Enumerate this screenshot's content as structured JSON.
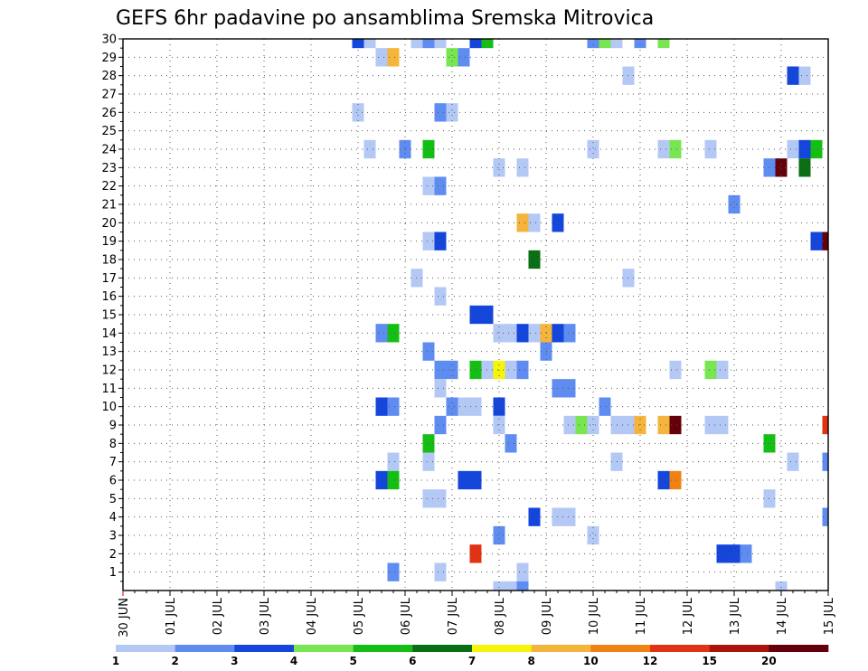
{
  "chart_data": {
    "type": "heatmap",
    "title": "GEFS 6hr padavine po ansamblima Sremska Mitrovica",
    "x_tick_labels": [
      "30 JUN",
      "01 JUL",
      "02 JUL",
      "03 JUL",
      "04 JUL",
      "05 JUL",
      "06 JUL",
      "07 JUL",
      "08 JUL",
      "09 JUL",
      "10 JUL",
      "11 JUL",
      "12 JUL",
      "13 JUL",
      "14 JUL",
      "15 JUL"
    ],
    "x_range_days": [
      0,
      15
    ],
    "y_ticks": [
      1,
      2,
      3,
      4,
      5,
      6,
      7,
      8,
      9,
      10,
      11,
      12,
      13,
      14,
      15,
      16,
      17,
      18,
      19,
      20,
      21,
      22,
      23,
      24,
      25,
      26,
      27,
      28,
      29,
      30
    ],
    "y_range": [
      0,
      30
    ],
    "grid": "dotted",
    "legend": {
      "placement": "bottom",
      "bins": [
        {
          "color": "#b4c8f5"
        },
        {
          "color": "#5f8cf0"
        },
        {
          "color": "#1446dc"
        },
        {
          "color": "#78e650"
        },
        {
          "color": "#14be14"
        },
        {
          "color": "#0a6e14"
        },
        {
          "color": "#f5f50a"
        },
        {
          "color": "#f5b43c"
        },
        {
          "color": "#f08214"
        },
        {
          "color": "#e13214"
        },
        {
          "color": "#aa140a"
        },
        {
          "color": "#64000a"
        }
      ],
      "tick_labels": [
        "1",
        "2",
        "3",
        "4",
        "5",
        "6",
        "7",
        "8",
        "10",
        "12",
        "15",
        "20"
      ]
    },
    "cells": [
      [
        5.0,
        30,
        2
      ],
      [
        5.25,
        30,
        0
      ],
      [
        6.25,
        30,
        0
      ],
      [
        6.5,
        30,
        1
      ],
      [
        6.75,
        30,
        0
      ],
      [
        7.5,
        30,
        2
      ],
      [
        7.75,
        30,
        4
      ],
      [
        10.0,
        30,
        1
      ],
      [
        10.25,
        30,
        3
      ],
      [
        10.5,
        30,
        0
      ],
      [
        11.0,
        30,
        1
      ],
      [
        11.5,
        30,
        3
      ],
      [
        5.5,
        29,
        0
      ],
      [
        5.75,
        29,
        7
      ],
      [
        7.0,
        29,
        3
      ],
      [
        7.25,
        29,
        1
      ],
      [
        10.75,
        28,
        0
      ],
      [
        14.25,
        28,
        2
      ],
      [
        14.5,
        28,
        0
      ],
      [
        5.0,
        26,
        0
      ],
      [
        6.75,
        26,
        1
      ],
      [
        7.0,
        26,
        0
      ],
      [
        5.25,
        24,
        0
      ],
      [
        6.0,
        24,
        1
      ],
      [
        6.5,
        24,
        4
      ],
      [
        10.0,
        24,
        0
      ],
      [
        11.5,
        24,
        0
      ],
      [
        11.75,
        24,
        3
      ],
      [
        12.5,
        24,
        0
      ],
      [
        14.25,
        24,
        0
      ],
      [
        14.5,
        24,
        2
      ],
      [
        14.75,
        24,
        4
      ],
      [
        8.0,
        23,
        0
      ],
      [
        8.5,
        23,
        0
      ],
      [
        13.75,
        23,
        1
      ],
      [
        14.0,
        23,
        11
      ],
      [
        14.5,
        23,
        5
      ],
      [
        6.5,
        22,
        0
      ],
      [
        6.75,
        22,
        1
      ],
      [
        13.0,
        21,
        1
      ],
      [
        8.5,
        20,
        7
      ],
      [
        8.75,
        20,
        0
      ],
      [
        9.25,
        20,
        2
      ],
      [
        6.5,
        19,
        0
      ],
      [
        6.75,
        19,
        2
      ],
      [
        14.75,
        19,
        2
      ],
      [
        15.0,
        19,
        11
      ],
      [
        8.75,
        18,
        5
      ],
      [
        6.25,
        17,
        0
      ],
      [
        10.75,
        17,
        0
      ],
      [
        6.75,
        16,
        0
      ],
      [
        7.5,
        15,
        2
      ],
      [
        7.75,
        15,
        2
      ],
      [
        5.5,
        14,
        1
      ],
      [
        5.75,
        14,
        4
      ],
      [
        8.0,
        14,
        0
      ],
      [
        8.25,
        14,
        0
      ],
      [
        8.5,
        14,
        2
      ],
      [
        8.75,
        14,
        0
      ],
      [
        9.0,
        14,
        7
      ],
      [
        9.25,
        14,
        2
      ],
      [
        9.5,
        14,
        1
      ],
      [
        6.5,
        13,
        1
      ],
      [
        9.0,
        13,
        1
      ],
      [
        6.75,
        12,
        1
      ],
      [
        7.0,
        12,
        1
      ],
      [
        7.5,
        12,
        4
      ],
      [
        7.75,
        12,
        0
      ],
      [
        8.0,
        12,
        6
      ],
      [
        8.25,
        12,
        0
      ],
      [
        8.5,
        12,
        1
      ],
      [
        11.75,
        12,
        0
      ],
      [
        12.5,
        12,
        3
      ],
      [
        12.75,
        12,
        0
      ],
      [
        6.75,
        11,
        0
      ],
      [
        9.25,
        11,
        1
      ],
      [
        9.5,
        11,
        1
      ],
      [
        5.5,
        10,
        2
      ],
      [
        5.75,
        10,
        1
      ],
      [
        7.0,
        10,
        1
      ],
      [
        7.25,
        10,
        0
      ],
      [
        7.5,
        10,
        0
      ],
      [
        8.0,
        10,
        2
      ],
      [
        10.25,
        10,
        1
      ],
      [
        6.75,
        9,
        1
      ],
      [
        8.0,
        9,
        0
      ],
      [
        9.5,
        9,
        0
      ],
      [
        9.75,
        9,
        3
      ],
      [
        10.0,
        9,
        0
      ],
      [
        10.5,
        9,
        0
      ],
      [
        10.75,
        9,
        0
      ],
      [
        11.0,
        9,
        7
      ],
      [
        11.5,
        9,
        7
      ],
      [
        11.75,
        9,
        11
      ],
      [
        12.5,
        9,
        0
      ],
      [
        12.75,
        9,
        0
      ],
      [
        15.0,
        9,
        9
      ],
      [
        6.5,
        8,
        4
      ],
      [
        8.25,
        8,
        1
      ],
      [
        13.75,
        8,
        4
      ],
      [
        5.75,
        7,
        0
      ],
      [
        6.5,
        7,
        0
      ],
      [
        10.5,
        7,
        0
      ],
      [
        14.25,
        7,
        0
      ],
      [
        15.0,
        7,
        1
      ],
      [
        5.5,
        6,
        2
      ],
      [
        5.75,
        6,
        4
      ],
      [
        7.25,
        6,
        2
      ],
      [
        7.5,
        6,
        2
      ],
      [
        11.5,
        6,
        2
      ],
      [
        11.75,
        6,
        8
      ],
      [
        6.5,
        5,
        0
      ],
      [
        6.75,
        5,
        0
      ],
      [
        13.75,
        5,
        0
      ],
      [
        8.75,
        4,
        2
      ],
      [
        9.25,
        4,
        0
      ],
      [
        9.5,
        4,
        0
      ],
      [
        15.0,
        4,
        1
      ],
      [
        8.0,
        3,
        1
      ],
      [
        10.0,
        3,
        0
      ],
      [
        7.5,
        2,
        9
      ],
      [
        12.75,
        2,
        2
      ],
      [
        13.0,
        2,
        2
      ],
      [
        13.25,
        2,
        1
      ],
      [
        5.75,
        1,
        1
      ],
      [
        6.75,
        1,
        0
      ],
      [
        8.5,
        1,
        0
      ],
      [
        8.0,
        0,
        0
      ],
      [
        8.25,
        0,
        0
      ],
      [
        8.5,
        0,
        1
      ],
      [
        14.0,
        0,
        0
      ]
    ]
  }
}
